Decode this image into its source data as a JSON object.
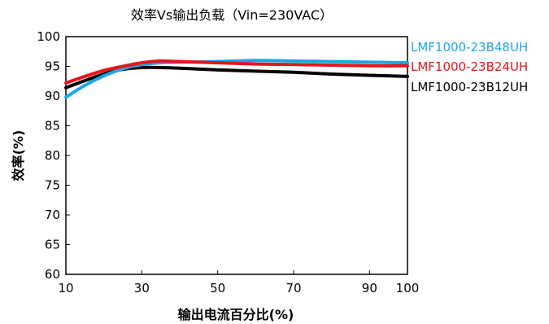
{
  "chart_data": {
    "type": "line",
    "title": "效率Vs输出负载（Vin=230VAC）",
    "xlabel": "输出电流百分比(%)",
    "ylabel": "效率(%)",
    "xlim": [
      10,
      100
    ],
    "ylim": [
      60,
      100
    ],
    "xticks": [
      10,
      30,
      50,
      70,
      90,
      100
    ],
    "yticks": [
      60,
      65,
      70,
      75,
      80,
      85,
      90,
      95,
      100
    ],
    "grid": false,
    "legend_position": "right",
    "series": [
      {
        "name": "LMF1000-23B48UH",
        "color": "#1aa7e6",
        "x": [
          10,
          15,
          20,
          25,
          30,
          35,
          40,
          50,
          60,
          70,
          80,
          90,
          100
        ],
        "y": [
          89.8,
          91.8,
          93.4,
          94.6,
          95.3,
          95.6,
          95.7,
          95.8,
          96.0,
          95.9,
          95.8,
          95.7,
          95.6
        ]
      },
      {
        "name": "LMF1000-23B24UH",
        "color": "#e8141c",
        "x": [
          10,
          15,
          20,
          25,
          30,
          35,
          40,
          50,
          60,
          70,
          80,
          90,
          100
        ],
        "y": [
          92.2,
          93.3,
          94.3,
          95.0,
          95.6,
          95.9,
          95.8,
          95.6,
          95.4,
          95.3,
          95.2,
          95.1,
          95.1
        ]
      },
      {
        "name": "LMF1000-23B12UH",
        "color": "#000000",
        "x": [
          10,
          15,
          20,
          25,
          30,
          35,
          40,
          50,
          60,
          70,
          80,
          90,
          100
        ],
        "y": [
          91.4,
          92.6,
          93.7,
          94.5,
          94.8,
          94.8,
          94.7,
          94.4,
          94.2,
          94.0,
          93.7,
          93.5,
          93.3
        ]
      }
    ]
  }
}
